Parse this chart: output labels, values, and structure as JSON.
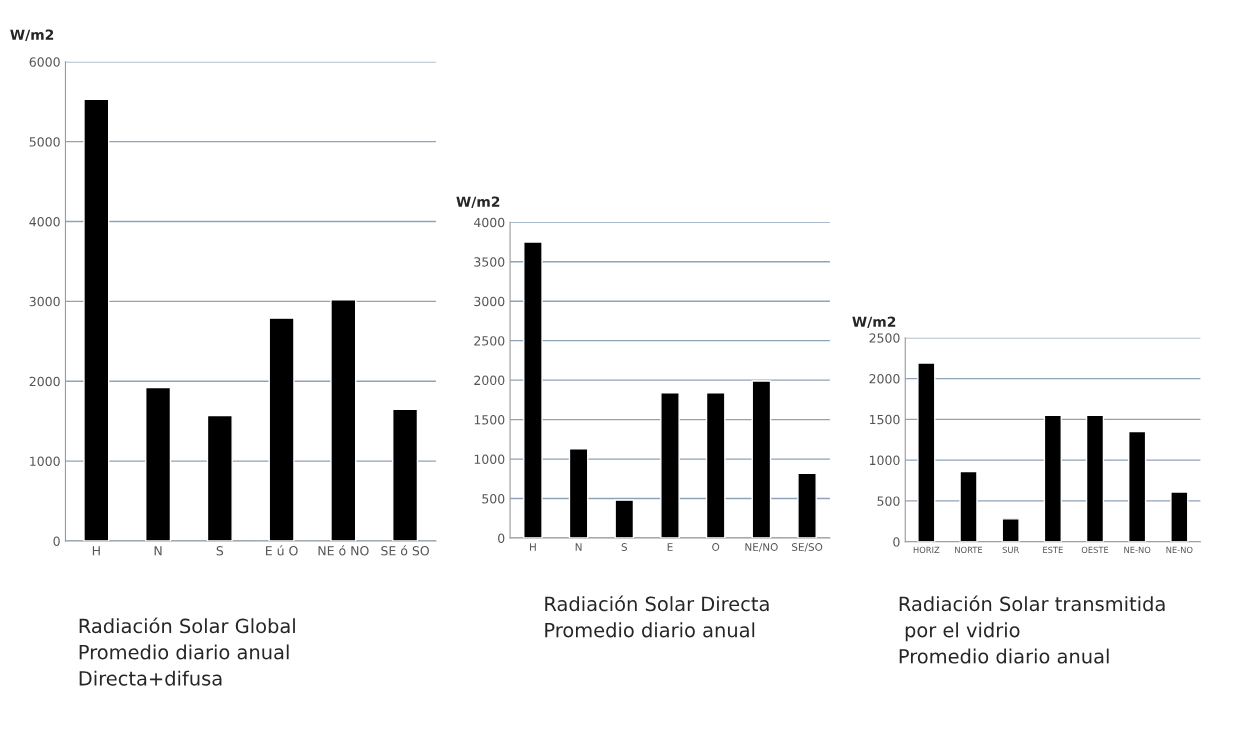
{
  "chart_data": [
    {
      "type": "bar",
      "title": "Radiación Solar Global\nPromedio diario anual\nDirecta+difusa",
      "ylabel": "W/m2",
      "categories": [
        "H",
        "N",
        "S",
        "E ú O",
        "NE ó NO",
        "SE ó SO"
      ],
      "values": [
        5530,
        1920,
        1570,
        2790,
        3020,
        1650
      ],
      "color": "#000000",
      "ylim": [
        0,
        6000
      ],
      "yticks": [
        0,
        1000,
        2000,
        3000,
        4000,
        5000,
        6000
      ],
      "grid": "y"
    },
    {
      "type": "bar",
      "title": "Radiación Solar Directa\nPromedio diario anual",
      "ylabel": "W/m2",
      "categories": [
        "H",
        "N",
        "S",
        "E",
        "O",
        "NE/NO",
        "SE/SO"
      ],
      "values": [
        3750,
        1130,
        480,
        1840,
        1840,
        1990,
        820
      ],
      "color": "#000000",
      "ylim": [
        0,
        4000
      ],
      "yticks": [
        0,
        500,
        1000,
        1500,
        2000,
        2500,
        3000,
        3500,
        4000
      ],
      "grid": "y"
    },
    {
      "type": "bar",
      "title": "Radiación Solar transmitida\n por el vidrio\nPromedio diario anual",
      "ylabel": "W/m2",
      "categories": [
        "HORIZ",
        "NORTE",
        "SUR",
        "ESTE",
        "OESTE",
        "NE-NO",
        "NE-NO"
      ],
      "values": [
        2190,
        860,
        280,
        1550,
        1550,
        1350,
        610
      ],
      "color": "#000000",
      "ylim": [
        0,
        2500
      ],
      "yticks": [
        0,
        500,
        1000,
        1500,
        2000,
        2500
      ],
      "grid": "y"
    }
  ]
}
